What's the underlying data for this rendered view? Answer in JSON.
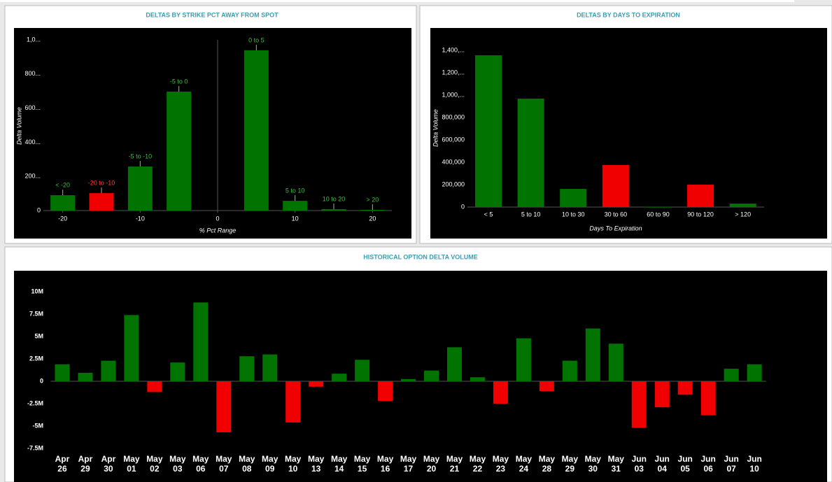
{
  "chart_data": [
    {
      "type": "bar",
      "title": "DELTAS BY STRIKE PCT AWAY FROM SPOT",
      "xlabel": "% Pct Range",
      "ylabel": "Delta Volume",
      "x": [
        -20,
        -15,
        -10,
        -5,
        5,
        10,
        15,
        20
      ],
      "labels": [
        "< -20",
        "-20 to -10",
        "-5 to -10",
        "-5 to 0",
        "0 to 5",
        "5 to 10",
        "10 to 20",
        "> 20"
      ],
      "values": [
        90000,
        102000,
        258000,
        697000,
        939000,
        57000,
        8000,
        4000
      ],
      "colors": [
        "#007300",
        "#f00000",
        "#007300",
        "#007300",
        "#007300",
        "#007300",
        "#007300",
        "#007300"
      ],
      "xlim": [
        -22.5,
        22.5
      ],
      "xticks": [
        -20,
        -10,
        0,
        10,
        20
      ],
      "ylim": [
        0,
        1000000
      ],
      "yticks": [
        0,
        {
          "value": 200000,
          "label": "200..."
        },
        {
          "value": 400000,
          "label": "400..."
        },
        {
          "value": 600000,
          "label": "600..."
        },
        {
          "value": 800000,
          "label": "800..."
        },
        {
          "value": 1000000,
          "label": "1,0..."
        }
      ]
    },
    {
      "type": "bar",
      "title": "DELTAS BY DAYS TO EXPIRATION",
      "xlabel": "Days To Expiration",
      "ylabel": "Delta Volume",
      "categories": [
        "< 5",
        "5 to 10",
        "10 to 30",
        "30 to 60",
        "60 to 90",
        "90 to 120",
        "> 120"
      ],
      "values": [
        1356000,
        969000,
        162000,
        375000,
        2000,
        200000,
        31000
      ],
      "colors": [
        "#007300",
        "#007300",
        "#007300",
        "#f00000",
        "#007300",
        "#f00000",
        "#007300"
      ],
      "ylim": [
        0,
        1450000
      ],
      "yticks": [
        0,
        {
          "value": 200000,
          "label": "200,000"
        },
        {
          "value": 400000,
          "label": "400,000"
        },
        {
          "value": 600000,
          "label": "600,000"
        },
        {
          "value": 800000,
          "label": "800,000"
        },
        {
          "value": 1000000,
          "label": "1,000,..."
        },
        {
          "value": 1200000,
          "label": "1,200,..."
        },
        {
          "value": 1400000,
          "label": "1,400,..."
        }
      ]
    },
    {
      "type": "bar",
      "title": "HISTORICAL OPTION DELTA VOLUME",
      "categories": [
        "Apr 26",
        "Apr 29",
        "Apr 30",
        "May 01",
        "May 02",
        "May 03",
        "May 06",
        "May 07",
        "May 08",
        "May 09",
        "May 10",
        "May 13",
        "May 14",
        "May 15",
        "May 16",
        "May 17",
        "May 20",
        "May 21",
        "May 22",
        "May 23",
        "May 24",
        "May 28",
        "May 29",
        "May 30",
        "May 31",
        "Jun 03",
        "Jun 04",
        "Jun 05",
        "Jun 06",
        "Jun 07",
        "Jun 10"
      ],
      "values": [
        1900000,
        950000,
        2300000,
        7400000,
        -1200000,
        2100000,
        8800000,
        -5700000,
        2800000,
        3000000,
        -4600000,
        -600000,
        850000,
        2400000,
        -2200000,
        250000,
        1200000,
        3800000,
        450000,
        -2500000,
        4800000,
        -1100000,
        2300000,
        5900000,
        4200000,
        -5200000,
        -2900000,
        -1500000,
        -3800000,
        1400000,
        1900000
      ],
      "color": "#007300",
      "negative_color": "#f00000",
      "ylim": [
        -8200000,
        11300000
      ],
      "yticks": [
        {
          "value": 10000000,
          "label": "10M"
        },
        {
          "value": 7500000,
          "label": "7.5M"
        },
        {
          "value": 5000000,
          "label": "5M"
        },
        {
          "value": 2500000,
          "label": "2.5M"
        },
        0,
        {
          "value": -2500000,
          "label": "-2.5M"
        },
        {
          "value": -5000000,
          "label": "-5M"
        },
        {
          "value": -7500000,
          "label": "-7.5M"
        }
      ]
    }
  ]
}
